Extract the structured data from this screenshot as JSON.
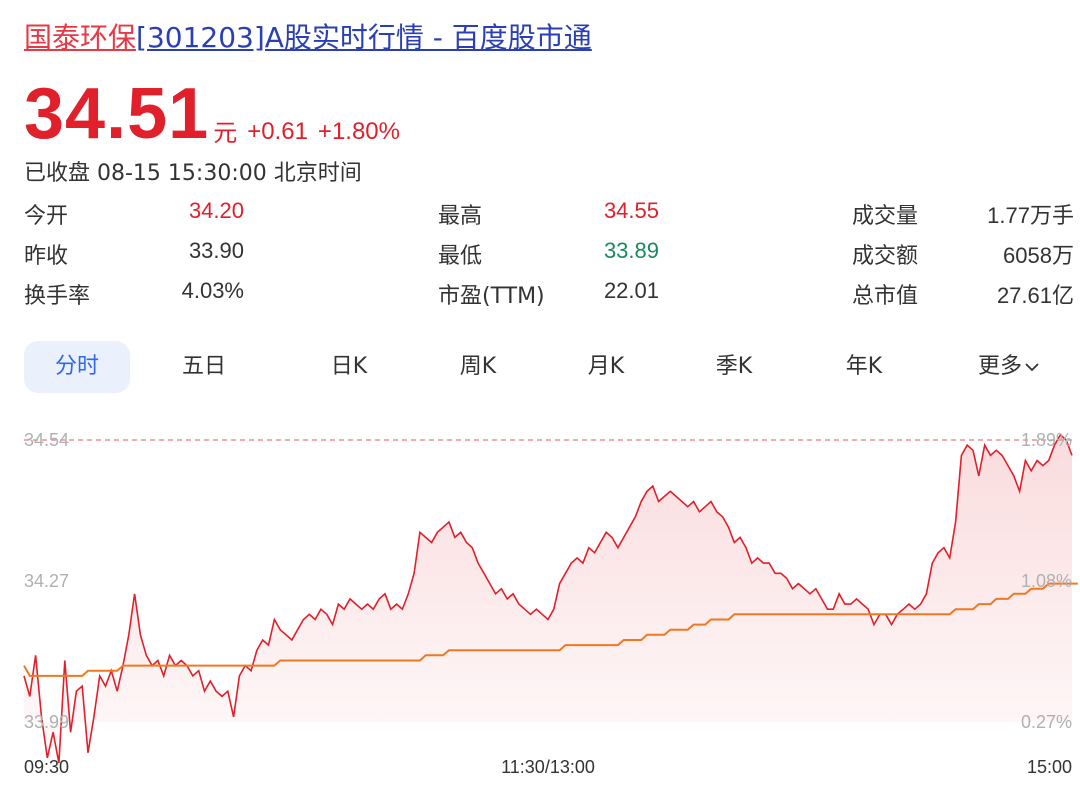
{
  "header": {
    "title_highlight": "国泰环保",
    "title_rest": "[301203]A股实时行情 - 百度股市通"
  },
  "quote": {
    "price": "34.51",
    "unit": "元",
    "change": "+0.61",
    "change_pct": "+1.80%",
    "status": "已收盘 08-15 15:30:00 北京时间"
  },
  "stats": [
    {
      "label": "今开",
      "value": "34.20",
      "color": "red"
    },
    {
      "label": "最高",
      "value": "34.55",
      "color": "red"
    },
    {
      "label": "成交量",
      "value": "1.77万手",
      "color": "neutral"
    },
    {
      "label": "昨收",
      "value": "33.90",
      "color": "neutral"
    },
    {
      "label": "最低",
      "value": "33.89",
      "color": "green"
    },
    {
      "label": "成交额",
      "value": "6058万",
      "color": "neutral"
    },
    {
      "label": "换手率",
      "value": "4.03%",
      "color": "neutral"
    },
    {
      "label": "市盈(TTM)",
      "value": "22.01",
      "color": "neutral"
    },
    {
      "label": "总市值",
      "value": "27.61亿",
      "color": "neutral"
    }
  ],
  "tabs": [
    {
      "label": "分时",
      "active": true
    },
    {
      "label": "五日"
    },
    {
      "label": "日K"
    },
    {
      "label": "周K"
    },
    {
      "label": "月K"
    },
    {
      "label": "季K"
    },
    {
      "label": "年K"
    },
    {
      "label": "更多"
    }
  ],
  "more_icon": "chevron-down-icon",
  "colors": {
    "up": "#e0202a",
    "down": "#1a8a5a",
    "avg_line": "#f07820",
    "accent": "#3168e4"
  },
  "chart_data": {
    "type": "line",
    "y_left_ticks": [
      "34.54",
      "34.27",
      "33.99"
    ],
    "y_right_ticks": [
      "1.89%",
      "1.08%",
      "0.27%"
    ],
    "x_ticks": [
      "09:30",
      "11:30/13:00",
      "15:00"
    ],
    "ylim": [
      33.99,
      34.54
    ],
    "high_line": 34.54,
    "series": [
      {
        "values": [
          34.08,
          34.04,
          34.12,
          34.0,
          33.92,
          33.97,
          33.91,
          34.11,
          33.97,
          34.05,
          34.06,
          33.93,
          34.0,
          34.08,
          34.06,
          34.09,
          34.05,
          34.1,
          34.16,
          34.24,
          34.16,
          34.12,
          34.1,
          34.11,
          34.08,
          34.12,
          34.1,
          34.11,
          34.1,
          34.08,
          34.09,
          34.05,
          34.07,
          34.05,
          34.04,
          34.05,
          34.0,
          34.08,
          34.1,
          34.09,
          34.13,
          34.15,
          34.14,
          34.19,
          34.17,
          34.16,
          34.15,
          34.17,
          34.19,
          34.2,
          34.19,
          34.21,
          34.2,
          34.18,
          34.22,
          34.21,
          34.23,
          34.22,
          34.21,
          34.22,
          34.21,
          34.23,
          34.24,
          34.21,
          34.22,
          34.21,
          34.24,
          34.28,
          34.36,
          34.35,
          34.34,
          34.36,
          34.37,
          34.38,
          34.35,
          34.36,
          34.34,
          34.33,
          34.3,
          34.28,
          34.26,
          34.24,
          34.25,
          34.23,
          34.24,
          34.22,
          34.21,
          34.2,
          34.21,
          34.2,
          34.19,
          34.21,
          34.26,
          34.28,
          34.3,
          34.31,
          34.3,
          34.33,
          34.32,
          34.34,
          34.36,
          34.35,
          34.33,
          34.35,
          34.37,
          34.39,
          34.42,
          34.44,
          34.45,
          34.42,
          34.43,
          34.44,
          34.43,
          34.42,
          34.41,
          34.42,
          34.4,
          34.41,
          34.42,
          34.4,
          34.39,
          34.37,
          34.34,
          34.35,
          34.33,
          34.3,
          34.31,
          34.3,
          34.3,
          34.28,
          34.28,
          34.27,
          34.25,
          34.26,
          34.25,
          34.24,
          34.25,
          34.23,
          34.21,
          34.21,
          34.24,
          34.22,
          34.22,
          34.23,
          34.22,
          34.21,
          34.18,
          34.2,
          34.2,
          34.18,
          34.2,
          34.21,
          34.22,
          34.21,
          34.22,
          34.24,
          34.3,
          34.32,
          34.33,
          34.31,
          34.38,
          34.51,
          34.53,
          34.52,
          34.47,
          34.53,
          34.51,
          34.52,
          34.51,
          34.49,
          34.47,
          34.44,
          34.5,
          34.48,
          34.5,
          34.49,
          34.5,
          34.53,
          34.55,
          34.54,
          34.51
        ]
      },
      {
        "values": [
          34.1,
          34.08,
          34.08,
          34.08,
          34.08,
          34.08,
          34.08,
          34.08,
          34.08,
          34.08,
          34.08,
          34.09,
          34.09,
          34.09,
          34.09,
          34.09,
          34.09,
          34.1,
          34.1,
          34.1,
          34.1,
          34.1,
          34.1,
          34.1,
          34.1,
          34.1,
          34.1,
          34.1,
          34.1,
          34.1,
          34.1,
          34.1,
          34.1,
          34.1,
          34.1,
          34.1,
          34.1,
          34.1,
          34.1,
          34.1,
          34.1,
          34.1,
          34.1,
          34.1,
          34.11,
          34.11,
          34.11,
          34.11,
          34.11,
          34.11,
          34.11,
          34.11,
          34.11,
          34.11,
          34.11,
          34.11,
          34.11,
          34.11,
          34.11,
          34.11,
          34.11,
          34.11,
          34.11,
          34.11,
          34.11,
          34.11,
          34.11,
          34.11,
          34.11,
          34.12,
          34.12,
          34.12,
          34.12,
          34.13,
          34.13,
          34.13,
          34.13,
          34.13,
          34.13,
          34.13,
          34.13,
          34.13,
          34.13,
          34.13,
          34.13,
          34.13,
          34.13,
          34.13,
          34.13,
          34.13,
          34.13,
          34.13,
          34.13,
          34.14,
          34.14,
          34.14,
          34.14,
          34.14,
          34.14,
          34.14,
          34.14,
          34.14,
          34.14,
          34.15,
          34.15,
          34.15,
          34.15,
          34.16,
          34.16,
          34.16,
          34.16,
          34.17,
          34.17,
          34.17,
          34.17,
          34.18,
          34.18,
          34.18,
          34.19,
          34.19,
          34.19,
          34.19,
          34.2,
          34.2,
          34.2,
          34.2,
          34.2,
          34.2,
          34.2,
          34.2,
          34.2,
          34.2,
          34.2,
          34.2,
          34.2,
          34.2,
          34.2,
          34.2,
          34.2,
          34.2,
          34.2,
          34.2,
          34.2,
          34.2,
          34.2,
          34.2,
          34.2,
          34.2,
          34.2,
          34.2,
          34.2,
          34.2,
          34.2,
          34.2,
          34.2,
          34.2,
          34.2,
          34.2,
          34.2,
          34.2,
          34.21,
          34.21,
          34.21,
          34.21,
          34.22,
          34.22,
          34.22,
          34.23,
          34.23,
          34.23,
          34.24,
          34.24,
          34.24,
          34.25,
          34.25,
          34.25,
          34.26,
          34.26,
          34.26,
          34.26,
          34.26,
          34.26
        ]
      }
    ]
  }
}
